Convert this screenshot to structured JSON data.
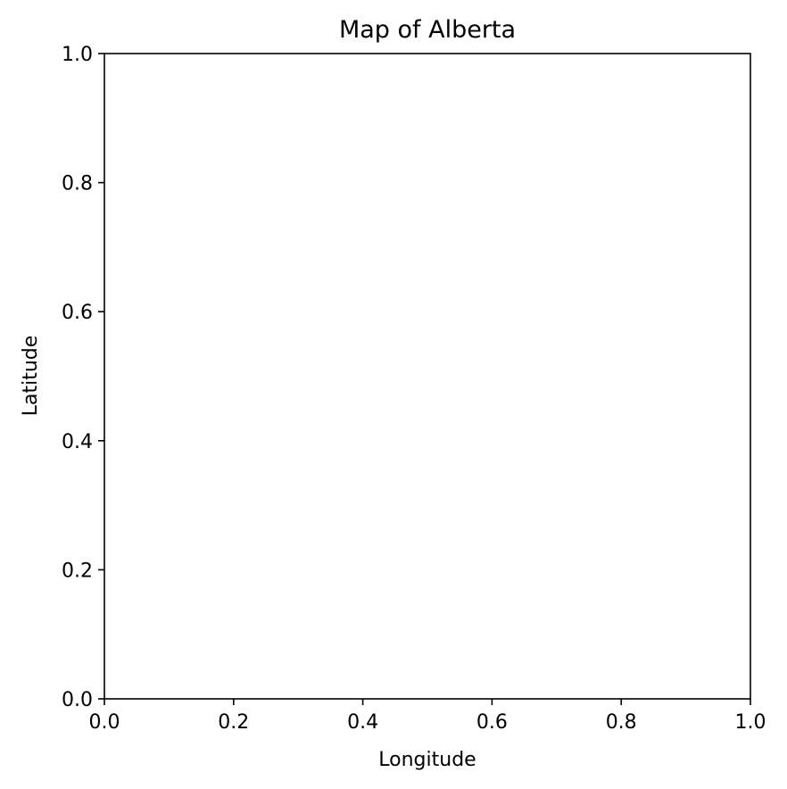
{
  "chart_data": {
    "type": "scatter",
    "title": "Map of Alberta",
    "xlabel": "Longitude",
    "ylabel": "Latitude",
    "xlim": [
      0.0,
      1.0
    ],
    "ylim": [
      0.0,
      1.0
    ],
    "xticks": [
      "0.0",
      "0.2",
      "0.4",
      "0.6",
      "0.8",
      "1.0"
    ],
    "yticks": [
      "0.0",
      "0.2",
      "0.4",
      "0.6",
      "0.8",
      "1.0"
    ],
    "series": [],
    "grid": false,
    "legend": "none"
  }
}
